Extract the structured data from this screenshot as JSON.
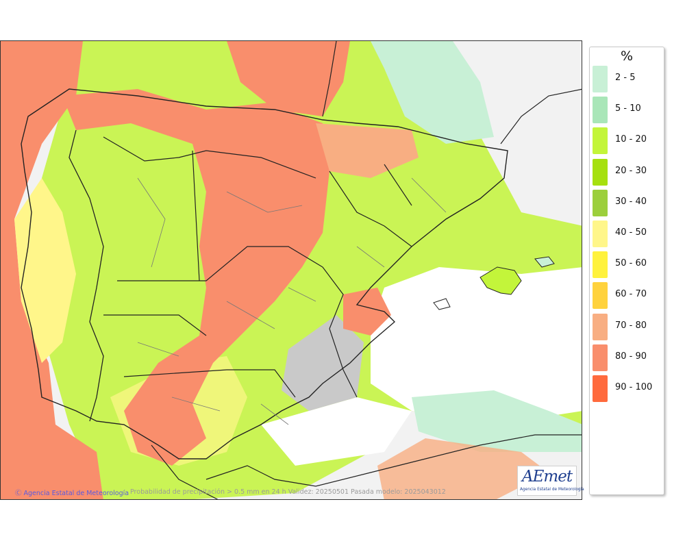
{
  "map": {
    "credit": "Agencia Estatal de Meteorología",
    "caption": "Probabilidad de precipitación > 0.5 mm en 24 h Validez: 20250501 Pasada modelo: 2025043012",
    "logo": {
      "wordmark": "AEmet",
      "subtitle": "Agencia Estatal de Meteorología",
      "color": "#1f3f8f"
    },
    "colors": {
      "ocean_low": "#f2f2f2",
      "land_background": "#f2f2f2",
      "borders": "#222222",
      "province_borders": "#777777"
    }
  },
  "legend": {
    "unit": "%",
    "items": [
      {
        "label": "2 - 5",
        "color": "#c8f0d6"
      },
      {
        "label": "5 - 10",
        "color": "#a9e6b8"
      },
      {
        "label": "10 - 20",
        "color": "#c3f53a"
      },
      {
        "label": "20 - 30",
        "color": "#a6e00f"
      },
      {
        "label": "30 - 40",
        "color": "#9ccf3c"
      },
      {
        "label": "40 - 50",
        "color": "#fff68a"
      },
      {
        "label": "50 - 60",
        "color": "#fff23d"
      },
      {
        "label": "60 - 70",
        "color": "#ffd23d"
      },
      {
        "label": "70 - 80",
        "color": "#f8ae82"
      },
      {
        "label": "80 - 90",
        "color": "#f98e6c"
      },
      {
        "label": "90 - 100",
        "color": "#ff6a3d"
      }
    ]
  }
}
